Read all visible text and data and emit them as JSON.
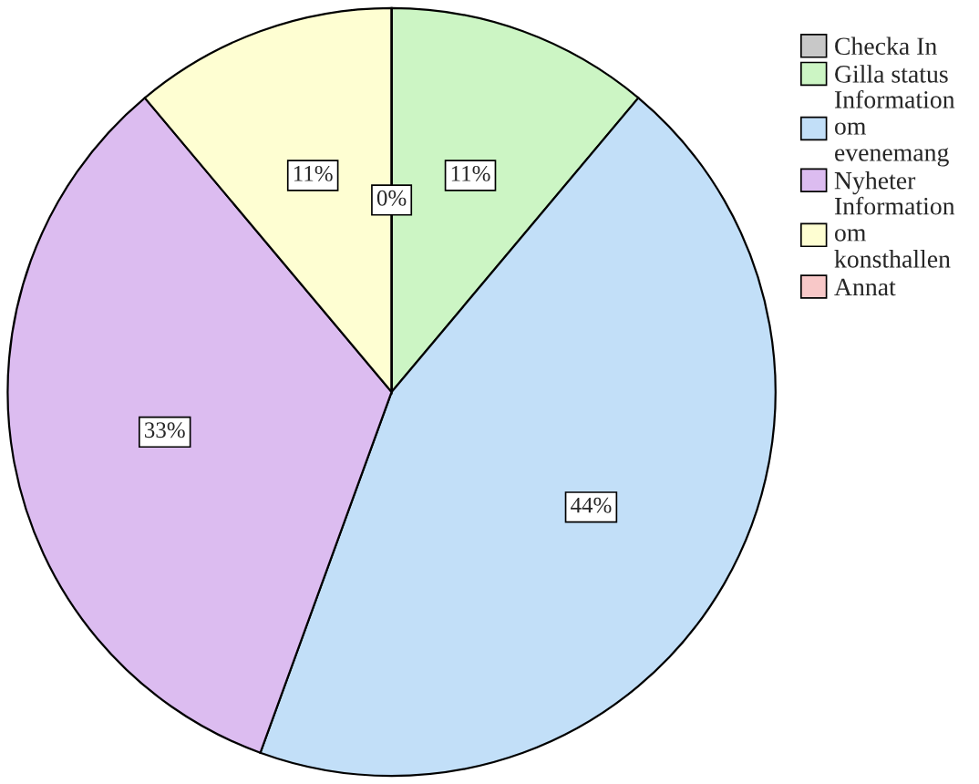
{
  "chart_data": {
    "type": "pie",
    "categories": [
      "Checka In",
      "Gilla status",
      "Information om evenemang",
      "Nyheter",
      "Information om konsthallen",
      "Annat"
    ],
    "values": [
      0,
      11,
      44,
      33,
      11,
      0
    ],
    "colors": [
      "#c8c8c8",
      "#ccf5c4",
      "#c2dff8",
      "#dcbcf0",
      "#fefed2",
      "#f8c8c8"
    ],
    "value_labels": [
      "0%",
      "11%",
      "44%",
      "33%",
      "11%",
      null
    ],
    "legend": "top right"
  }
}
